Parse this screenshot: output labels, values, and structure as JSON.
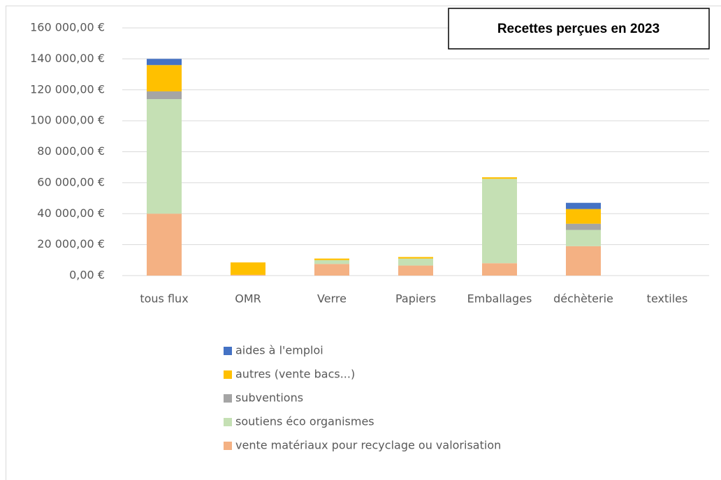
{
  "chart_data": {
    "type": "stacked_bar",
    "title": "Recettes perçues en 2023",
    "categories": [
      "tous flux",
      "OMR",
      "Verre",
      "Papiers",
      "Emballages",
      "déchèterie",
      "textiles"
    ],
    "series": [
      {
        "name": "vente matériaux pour recyclage ou valorisation",
        "color": "#F4B183",
        "values": [
          40000,
          500,
          7500,
          6500,
          8000,
          19000,
          0
        ]
      },
      {
        "name": "soutiens éco organismes",
        "color": "#C5E0B4",
        "values": [
          74000,
          0,
          2500,
          4500,
          54500,
          10500,
          0
        ]
      },
      {
        "name": "subventions",
        "color": "#A5A5A5",
        "values": [
          5000,
          0,
          0,
          0,
          0,
          4000,
          0
        ]
      },
      {
        "name": "autres (vente bacs...)",
        "color": "#FFC000",
        "values": [
          17000,
          8000,
          1000,
          1000,
          1000,
          9500,
          0
        ]
      },
      {
        "name": "aides à l'emploi",
        "color": "#4472C4",
        "values": [
          4000,
          0,
          0,
          0,
          0,
          4000,
          0
        ]
      }
    ],
    "ylim": [
      0,
      160000
    ],
    "yticks": [
      {
        "value": 0,
        "label": "0,00 €"
      },
      {
        "value": 20000,
        "label": "20 000,00 €"
      },
      {
        "value": 40000,
        "label": "40 000,00 €"
      },
      {
        "value": 60000,
        "label": "60 000,00 €"
      },
      {
        "value": 80000,
        "label": "80 000,00 €"
      },
      {
        "value": 100000,
        "label": "100 000,00 €"
      },
      {
        "value": 120000,
        "label": "120 000,00 €"
      },
      {
        "value": 140000,
        "label": "140 000,00 €"
      },
      {
        "value": 160000,
        "label": "160 000,00 €"
      }
    ],
    "grid": true
  }
}
